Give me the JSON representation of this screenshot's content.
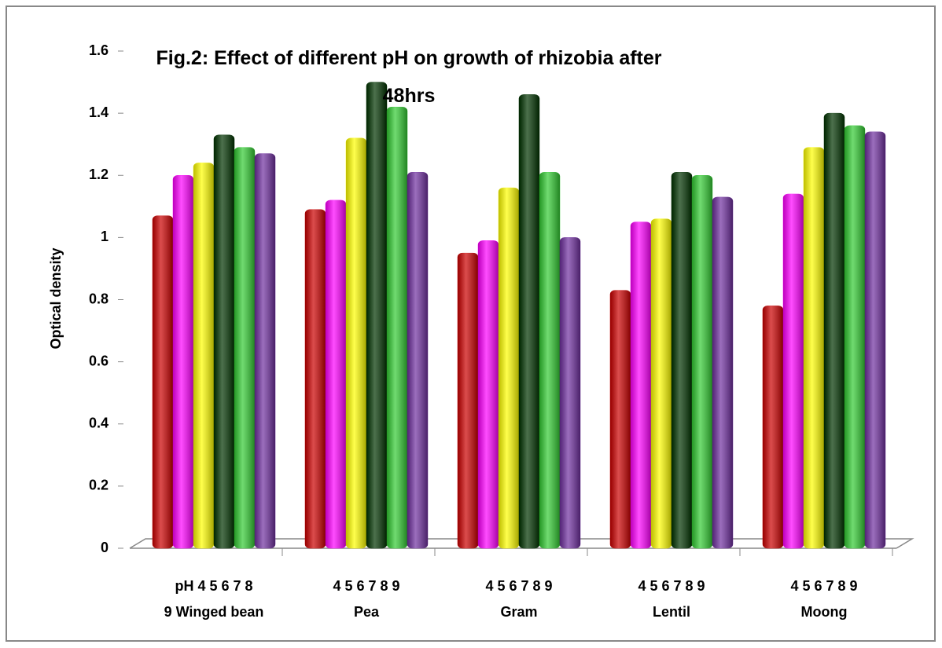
{
  "chart_data": {
    "type": "bar",
    "title": "Fig.2: Effect of different pH on growth of rhizobia after 48hrs",
    "y_label": "Optical density",
    "categories": [
      [
        "pH 4  5  6  7  8",
        "9 Winged bean"
      ],
      [
        "4  5  6  7  8  9",
        "Pea"
      ],
      [
        "4  5  6  7  8  9",
        "Gram"
      ],
      [
        "4  5  6  7  8  9",
        "Lentil"
      ],
      [
        "4  5  6  7  8  9",
        "Moong"
      ]
    ],
    "series": [
      {
        "color": "#cc0000",
        "values": [
          1.07,
          1.09,
          0.95,
          0.83,
          0.78
        ]
      },
      {
        "color": "#ff00ff",
        "values": [
          1.2,
          1.12,
          0.99,
          1.05,
          1.14
        ]
      },
      {
        "color": "#ffff00",
        "values": [
          1.24,
          1.32,
          1.16,
          1.06,
          1.29
        ]
      },
      {
        "color": "#003300",
        "values": [
          1.33,
          1.5,
          1.46,
          1.21,
          1.4
        ]
      },
      {
        "color": "#33cc33",
        "values": [
          1.29,
          1.42,
          1.21,
          1.2,
          1.36
        ]
      },
      {
        "color": "#7030a0",
        "values": [
          1.27,
          1.21,
          1.0,
          1.13,
          1.34
        ]
      }
    ],
    "ylim": [
      0,
      1.6
    ],
    "yticks": [
      0,
      0.2,
      0.4,
      0.6,
      0.8,
      1,
      1.2,
      1.4,
      1.6
    ],
    "grid": false
  }
}
